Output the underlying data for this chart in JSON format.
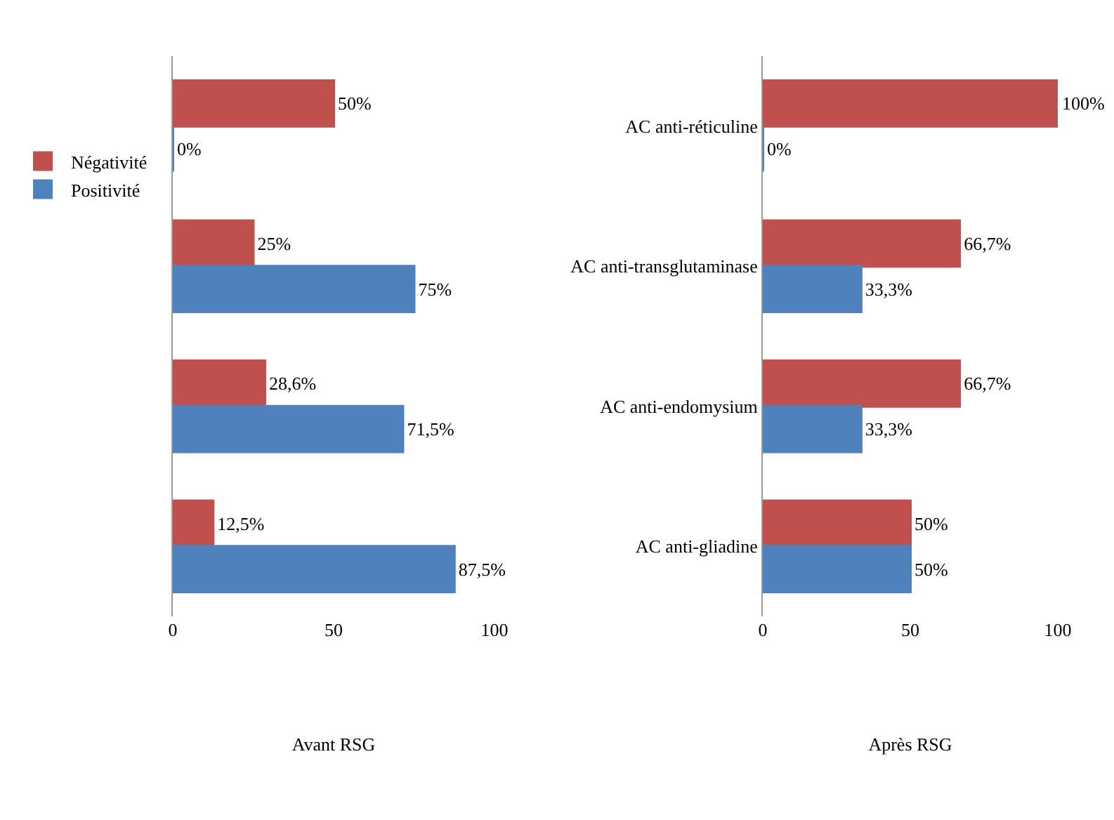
{
  "chart_data": [
    {
      "type": "bar",
      "orientation": "horizontal",
      "xlabel": "Avant RSG",
      "categories": [
        null,
        null,
        null,
        null
      ],
      "xlim": [
        0,
        100
      ],
      "xticks": [
        0,
        50,
        100
      ],
      "tick_labels": "x",
      "grid": false,
      "legend": "left",
      "series": [
        {
          "name": "Négativité",
          "color": "#c0504d",
          "values": [
            50,
            25,
            28.6,
            12.5
          ],
          "value_labels": [
            "50%",
            "25%",
            "28,6%",
            "12,5%"
          ]
        },
        {
          "name": "Positivité",
          "color": "#4f81bd",
          "values": [
            0,
            75,
            71.5,
            87.5
          ],
          "value_labels": [
            "0%",
            "75%",
            "71,5%",
            "87,5%"
          ]
        }
      ]
    },
    {
      "type": "bar",
      "orientation": "horizontal",
      "xlabel": "Après RSG",
      "categories": [
        "AC anti-réticuline",
        "AC anti-transglutaminase",
        "AC anti-endomysium",
        "AC anti-gliadine"
      ],
      "xlim": [
        0,
        100
      ],
      "xticks": [
        0,
        50,
        100
      ],
      "grid": false,
      "legend": false,
      "series": [
        {
          "color": "#c0504d",
          "values": [
            100,
            66.7,
            66.7,
            50
          ],
          "value_labels": [
            "100%",
            "66,7%",
            "66,7%",
            "50%"
          ]
        },
        {
          "color": "#4f81bd",
          "values": [
            0,
            33.3,
            33.3,
            50
          ],
          "value_labels": [
            "0%",
            "33,3%",
            "33,3%",
            "50%"
          ]
        }
      ]
    }
  ]
}
